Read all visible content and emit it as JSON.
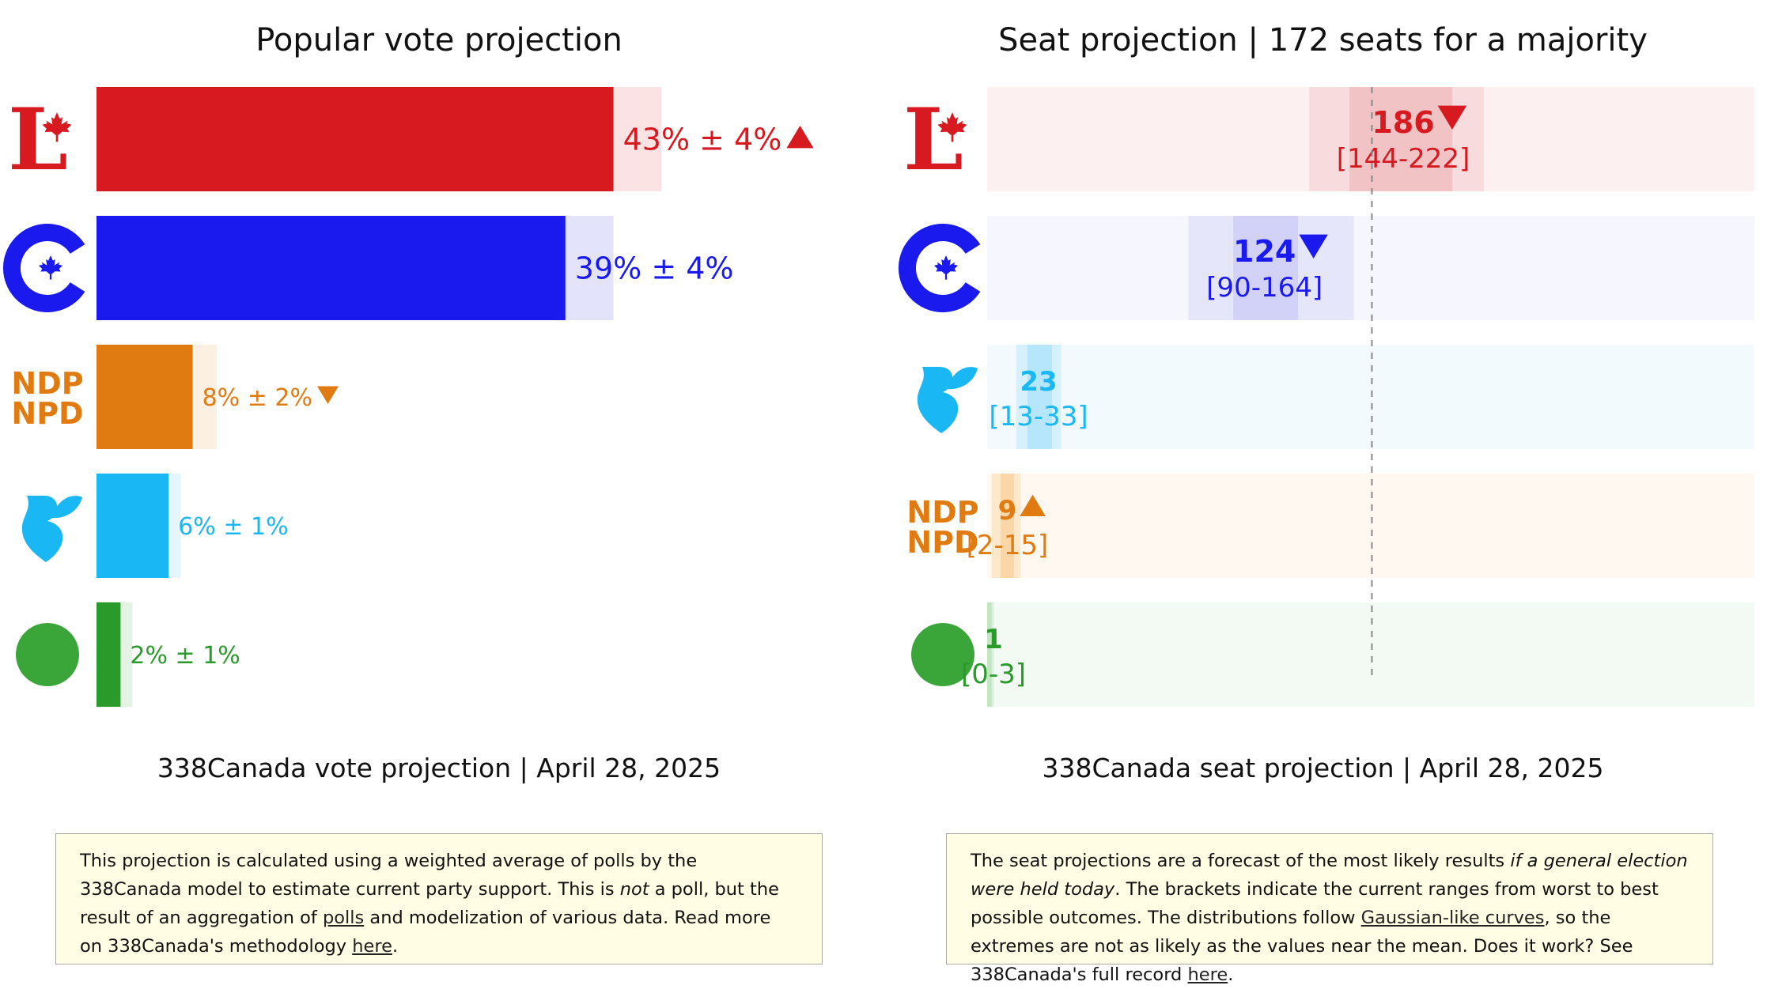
{
  "vote_chart": {
    "title": "Popular vote projection",
    "subtitle": "338Canada vote projection | April 28, 2025",
    "note": {
      "t1": "This projection is calculated using a weighted average of polls by the 338Canada model to estimate current party support. This is ",
      "t2_italic": "not",
      "t3": " a poll, but the result of an aggregation of ",
      "link1": "polls",
      "t4": " and modelization of various data. Read more on 338Canada's methodology ",
      "link2": "here",
      "t5": "."
    }
  },
  "seat_chart": {
    "title": "Seat projection | 172 seats for a majority",
    "subtitle": "338Canada seat projection | April 28, 2025",
    "majority_line": 172,
    "note": {
      "t1": "The seat projections are a forecast of the most likely results ",
      "t2_italic": "if a general election were held today",
      "t3": ". The brackets indicate the current ranges from worst to best possible outcomes. The distributions follow ",
      "link1": "Gaussian-like curves",
      "t4": ", so the extremes are not as likely as the values near the mean. Does it work? See 338Canada's full record ",
      "link2": "here",
      "t5": "."
    }
  },
  "logos": {
    "ndp_line1": "NDP",
    "ndp_line2": "NPD"
  },
  "chart_data": [
    {
      "type": "bar",
      "orientation": "horizontal",
      "title": "Popular vote projection",
      "xlim": [
        0,
        50
      ],
      "series": [
        {
          "key": "lpc",
          "logo": "liberal-logo",
          "value": 43,
          "margin": 4,
          "label": "43% ± 4%",
          "trend": "up",
          "color": "#d71920",
          "light": "#fbe2e3"
        },
        {
          "key": "cpc",
          "logo": "conservative-logo",
          "value": 39,
          "margin": 4,
          "label": "39% ± 4%",
          "trend": "none",
          "color": "#1a1aee",
          "light": "#e3e3fb"
        },
        {
          "key": "ndp",
          "logo": "ndp-logo",
          "value": 8,
          "margin": 2,
          "label": "8% ± 2%",
          "trend": "down",
          "color": "#e07b12",
          "light": "#fcf0e3"
        },
        {
          "key": "bq",
          "logo": "bloc-logo",
          "value": 6,
          "margin": 1,
          "label": "6% ± 1%",
          "trend": "none",
          "color": "#19b8f5",
          "light": "#e3f6fd"
        },
        {
          "key": "gpc",
          "logo": "green-logo",
          "value": 2,
          "margin": 1,
          "label": "2% ± 1%",
          "trend": "none",
          "color": "#2a9a2a",
          "light": "#e5f3e5"
        }
      ]
    },
    {
      "type": "bar",
      "orientation": "horizontal",
      "title": "Seat projection | 172 seats for a majority",
      "xlim": [
        0,
        343
      ],
      "series": [
        {
          "key": "lpc",
          "logo": "liberal-logo",
          "value": 186,
          "low": 144,
          "high": 222,
          "core_low": 162,
          "core_high": 208,
          "label": "186",
          "range": "[144-222]",
          "trend": "down",
          "color": "#d71920"
        },
        {
          "key": "cpc",
          "logo": "conservative-logo",
          "value": 124,
          "low": 90,
          "high": 164,
          "core_low": 110,
          "core_high": 139,
          "label": "124",
          "range": "[90-164]",
          "trend": "down",
          "color": "#1a1aee"
        },
        {
          "key": "bq",
          "logo": "bloc-logo",
          "value": 23,
          "low": 13,
          "high": 33,
          "core_low": 18,
          "core_high": 29,
          "label": "23",
          "range": "[13-33]",
          "trend": "none",
          "color": "#19b8f5"
        },
        {
          "key": "ndp",
          "logo": "ndp-logo",
          "value": 9,
          "low": 2,
          "high": 15,
          "core_low": 6,
          "core_high": 12,
          "label": "9",
          "range": "[2-15]",
          "trend": "up",
          "color": "#e07b12"
        },
        {
          "key": "gpc",
          "logo": "green-logo",
          "value": 1,
          "low": 0,
          "high": 3,
          "core_low": 0,
          "core_high": 2,
          "label": "1",
          "range": "[0-3]",
          "trend": "none",
          "color": "#2a9a2a"
        }
      ]
    }
  ]
}
